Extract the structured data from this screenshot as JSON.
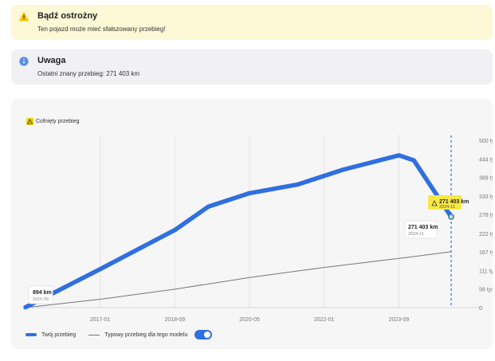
{
  "warning": {
    "title": "Bądź ostrożny",
    "text": "Ten pojazd może mieć sfałszowany przebieg!"
  },
  "info": {
    "title": "Uwaga",
    "text": "Ostatni znany przebieg: 271 403 km"
  },
  "chart_badge": "Cofnięty przebieg",
  "legend": {
    "own": "Twój przebieg",
    "typical": "Typowy przebieg dla tego modelu"
  },
  "colors": {
    "accent": "#2f6fe0",
    "warning_bg": "#fdf8d6",
    "warning_icon": "#f5c400",
    "typical_line": "#777777"
  },
  "chart_data": {
    "type": "line",
    "xlabel": "",
    "ylabel": "",
    "x_ticks": [
      "2017-01",
      "2018-09",
      "2020-05",
      "2022-01",
      "2023-09"
    ],
    "y_ticks": [
      "0",
      "56 tys.",
      "111 tys.",
      "167 tys.",
      "222 tys.",
      "278 tys.",
      "333 tys.",
      "389 tys.",
      "444 tys.",
      "500 tys."
    ],
    "y_tick_values": [
      0,
      56,
      111,
      167,
      222,
      278,
      333,
      389,
      444,
      500
    ],
    "y_unit": "tys. km",
    "x_range": [
      "2015-05",
      "2024-11"
    ],
    "y_range": [
      0,
      500
    ],
    "grid": true,
    "series": [
      {
        "name": "Twój przebieg",
        "x": [
          "2015-05",
          "2017-01",
          "2018-09",
          "2019-06",
          "2020-05",
          "2021-06",
          "2022-06",
          "2023-09",
          "2024-01",
          "2024-11"
        ],
        "y": [
          0.894,
          115,
          232,
          302,
          342,
          368,
          412,
          455,
          440,
          271.403
        ]
      },
      {
        "name": "Typowy przebieg dla tego modelu",
        "x": [
          "2015-05",
          "2017-01",
          "2018-09",
          "2020-05",
          "2022-01",
          "2023-09",
          "2024-11"
        ],
        "y": [
          0,
          25,
          55,
          90,
          120,
          147,
          167
        ]
      }
    ],
    "annotations": [
      {
        "label": "894 km",
        "date": "2015-05"
      },
      {
        "label": "271 403 km",
        "date": "2024-11"
      },
      {
        "label": "271 403 km",
        "date": "2024-11",
        "flag": "warning"
      }
    ]
  }
}
